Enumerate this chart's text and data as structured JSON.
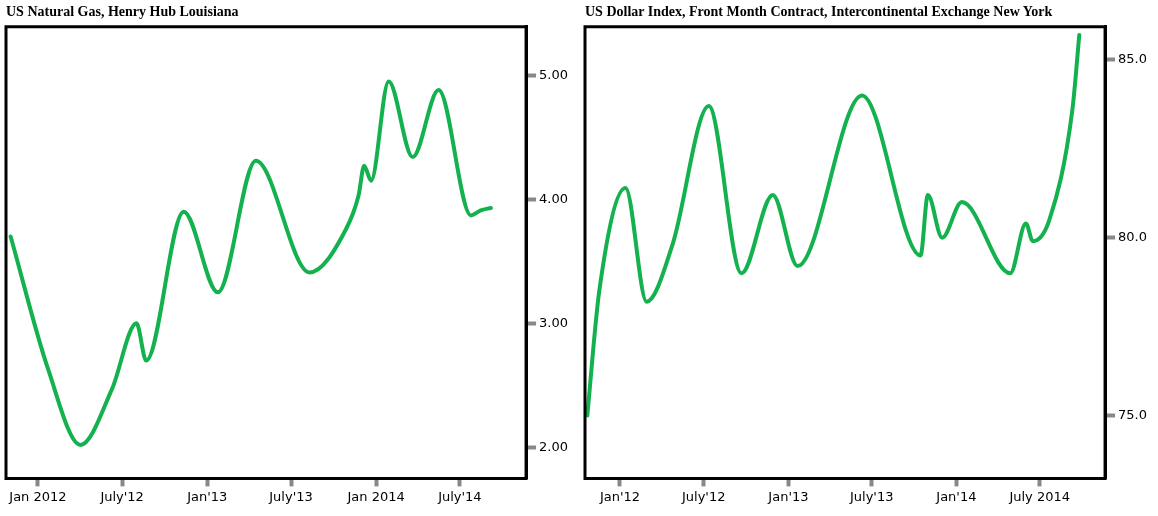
{
  "chart_data": [
    {
      "type": "line",
      "title": "US Natural Gas, Henry Hub Louisiana",
      "color": "#14b14f",
      "marker": "none",
      "line_style": "solid",
      "x": [
        "2011-11-03",
        "2012-01-23",
        "2012-04-02",
        "2012-06-09",
        "2012-08-01",
        "2012-08-22",
        "2012-11-11",
        "2013-01-24",
        "2013-04-16",
        "2013-08-10",
        "2013-10-28",
        "2013-11-24",
        "2013-12-06",
        "2013-12-21",
        "2014-01-28",
        "2014-03-21",
        "2014-05-16",
        "2014-07-25",
        "2014-08-15",
        "2014-09-06"
      ],
      "values": [
        3.7,
        2.63,
        2.02,
        2.47,
        3.0,
        2.7,
        3.9,
        3.25,
        4.31,
        3.41,
        3.76,
        4.03,
        4.27,
        4.15,
        4.95,
        4.34,
        4.88,
        3.87,
        3.91,
        3.93
      ],
      "xlim": [
        "2011-10-24",
        "2014-11-21"
      ],
      "xticks": [
        {
          "value": "2012-01-01",
          "label": "Jan 2012"
        },
        {
          "value": "2012-07-01",
          "label": "July'12"
        },
        {
          "value": "2013-01-01",
          "label": "Jan'13"
        },
        {
          "value": "2013-07-01",
          "label": "July'13"
        },
        {
          "value": "2014-01-01",
          "label": "Jan 2014"
        },
        {
          "value": "2014-07-01",
          "label": "July'14"
        }
      ],
      "ylim": [
        1.75,
        5.39
      ],
      "yticks": [
        {
          "value": 2,
          "label": "2.00"
        },
        {
          "value": 3,
          "label": "3.00"
        },
        {
          "value": 4,
          "label": "4.00"
        },
        {
          "value": 5,
          "label": "5.00"
        }
      ],
      "grid": false
    },
    {
      "type": "line",
      "title": "US Dollar Index, Front Month Contract, Intercontinental Exchange New York",
      "color": "#14b14f",
      "marker": "none",
      "line_style": "solid",
      "x": [
        "2011-10-22",
        "2011-11-17",
        "2012-01-13",
        "2012-02-28",
        "2012-04-24",
        "2012-07-12",
        "2012-09-21",
        "2012-11-28",
        "2013-01-21",
        "2013-06-10",
        "2013-10-15",
        "2013-10-31",
        "2013-12-01",
        "2014-01-13",
        "2014-04-28",
        "2014-06-01",
        "2014-06-16",
        "2014-07-22",
        "2014-09-10",
        "2014-09-25"
      ],
      "values": [
        75.0,
        78.5,
        81.4,
        78.2,
        79.8,
        83.7,
        79.0,
        81.2,
        79.2,
        84.0,
        79.5,
        81.2,
        80.0,
        81.0,
        79.0,
        80.4,
        79.9,
        80.5,
        83.6,
        85.7
      ],
      "xlim": [
        "2011-10-17",
        "2014-11-20"
      ],
      "xticks": [
        {
          "value": "2012-01-01",
          "label": "Jan'12"
        },
        {
          "value": "2012-07-01",
          "label": "July'12"
        },
        {
          "value": "2013-01-01",
          "label": "Jan'13"
        },
        {
          "value": "2013-07-01",
          "label": "July'13"
        },
        {
          "value": "2014-01-01",
          "label": "Jan'14"
        },
        {
          "value": "2014-07-01",
          "label": "July 2014"
        }
      ],
      "ylim": [
        73.23,
        85.93
      ],
      "yticks": [
        {
          "value": 75,
          "label": "75.0"
        },
        {
          "value": 80,
          "label": "80.0"
        },
        {
          "value": 85,
          "label": "85.0"
        }
      ],
      "grid": false
    }
  ]
}
